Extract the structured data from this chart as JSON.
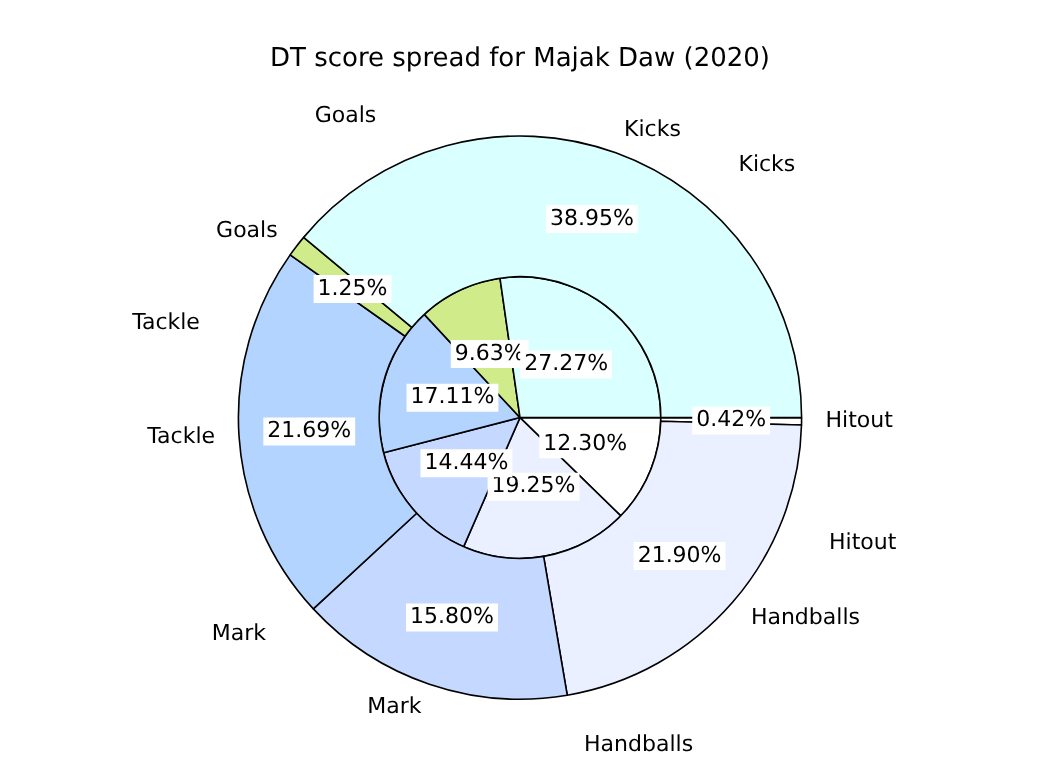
{
  "chart_data": {
    "type": "pie",
    "title": "DT score spread for Majak Daw (2020)",
    "categories": [
      "Hitout",
      "Handballs",
      "Mark",
      "Tackle",
      "Goals",
      "Kicks"
    ],
    "colors": [
      "#ffffff",
      "#eaf0ff",
      "#c5d8ff",
      "#b3d4ff",
      "#d0eb8a",
      "#d9ffff"
    ],
    "series": [
      {
        "values": [
          0.42,
          21.9,
          15.8,
          21.69,
          1.25,
          38.95
        ],
        "value_labels": [
          "0.42%",
          "21.90%",
          "15.80%",
          "21.69%",
          "1.25%",
          "38.95%"
        ]
      },
      {
        "values": [
          12.3,
          19.25,
          14.44,
          17.11,
          9.63,
          27.27
        ],
        "value_labels": [
          "12.30%",
          "19.25%",
          "14.44%",
          "17.11%",
          "9.63%",
          "27.27%"
        ]
      }
    ],
    "legend": false
  }
}
